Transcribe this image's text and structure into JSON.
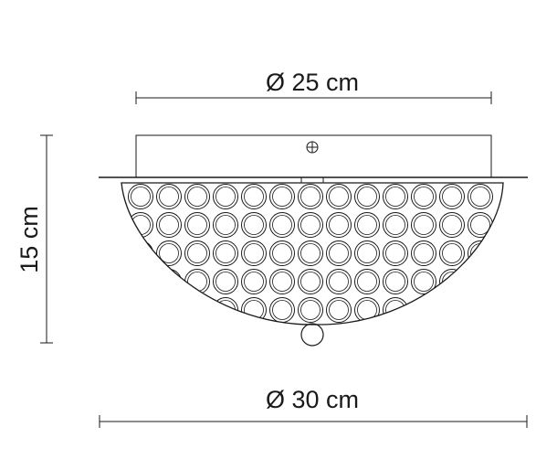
{
  "dimensions": {
    "top_diameter": "Ø 25 cm",
    "bottom_diameter": "Ø 30 cm",
    "height": "15 cm"
  },
  "colors": {
    "ink": "#1a1a1a",
    "background": "#ffffff"
  },
  "icons": {
    "fixing_screw": "cross-screw-icon"
  }
}
